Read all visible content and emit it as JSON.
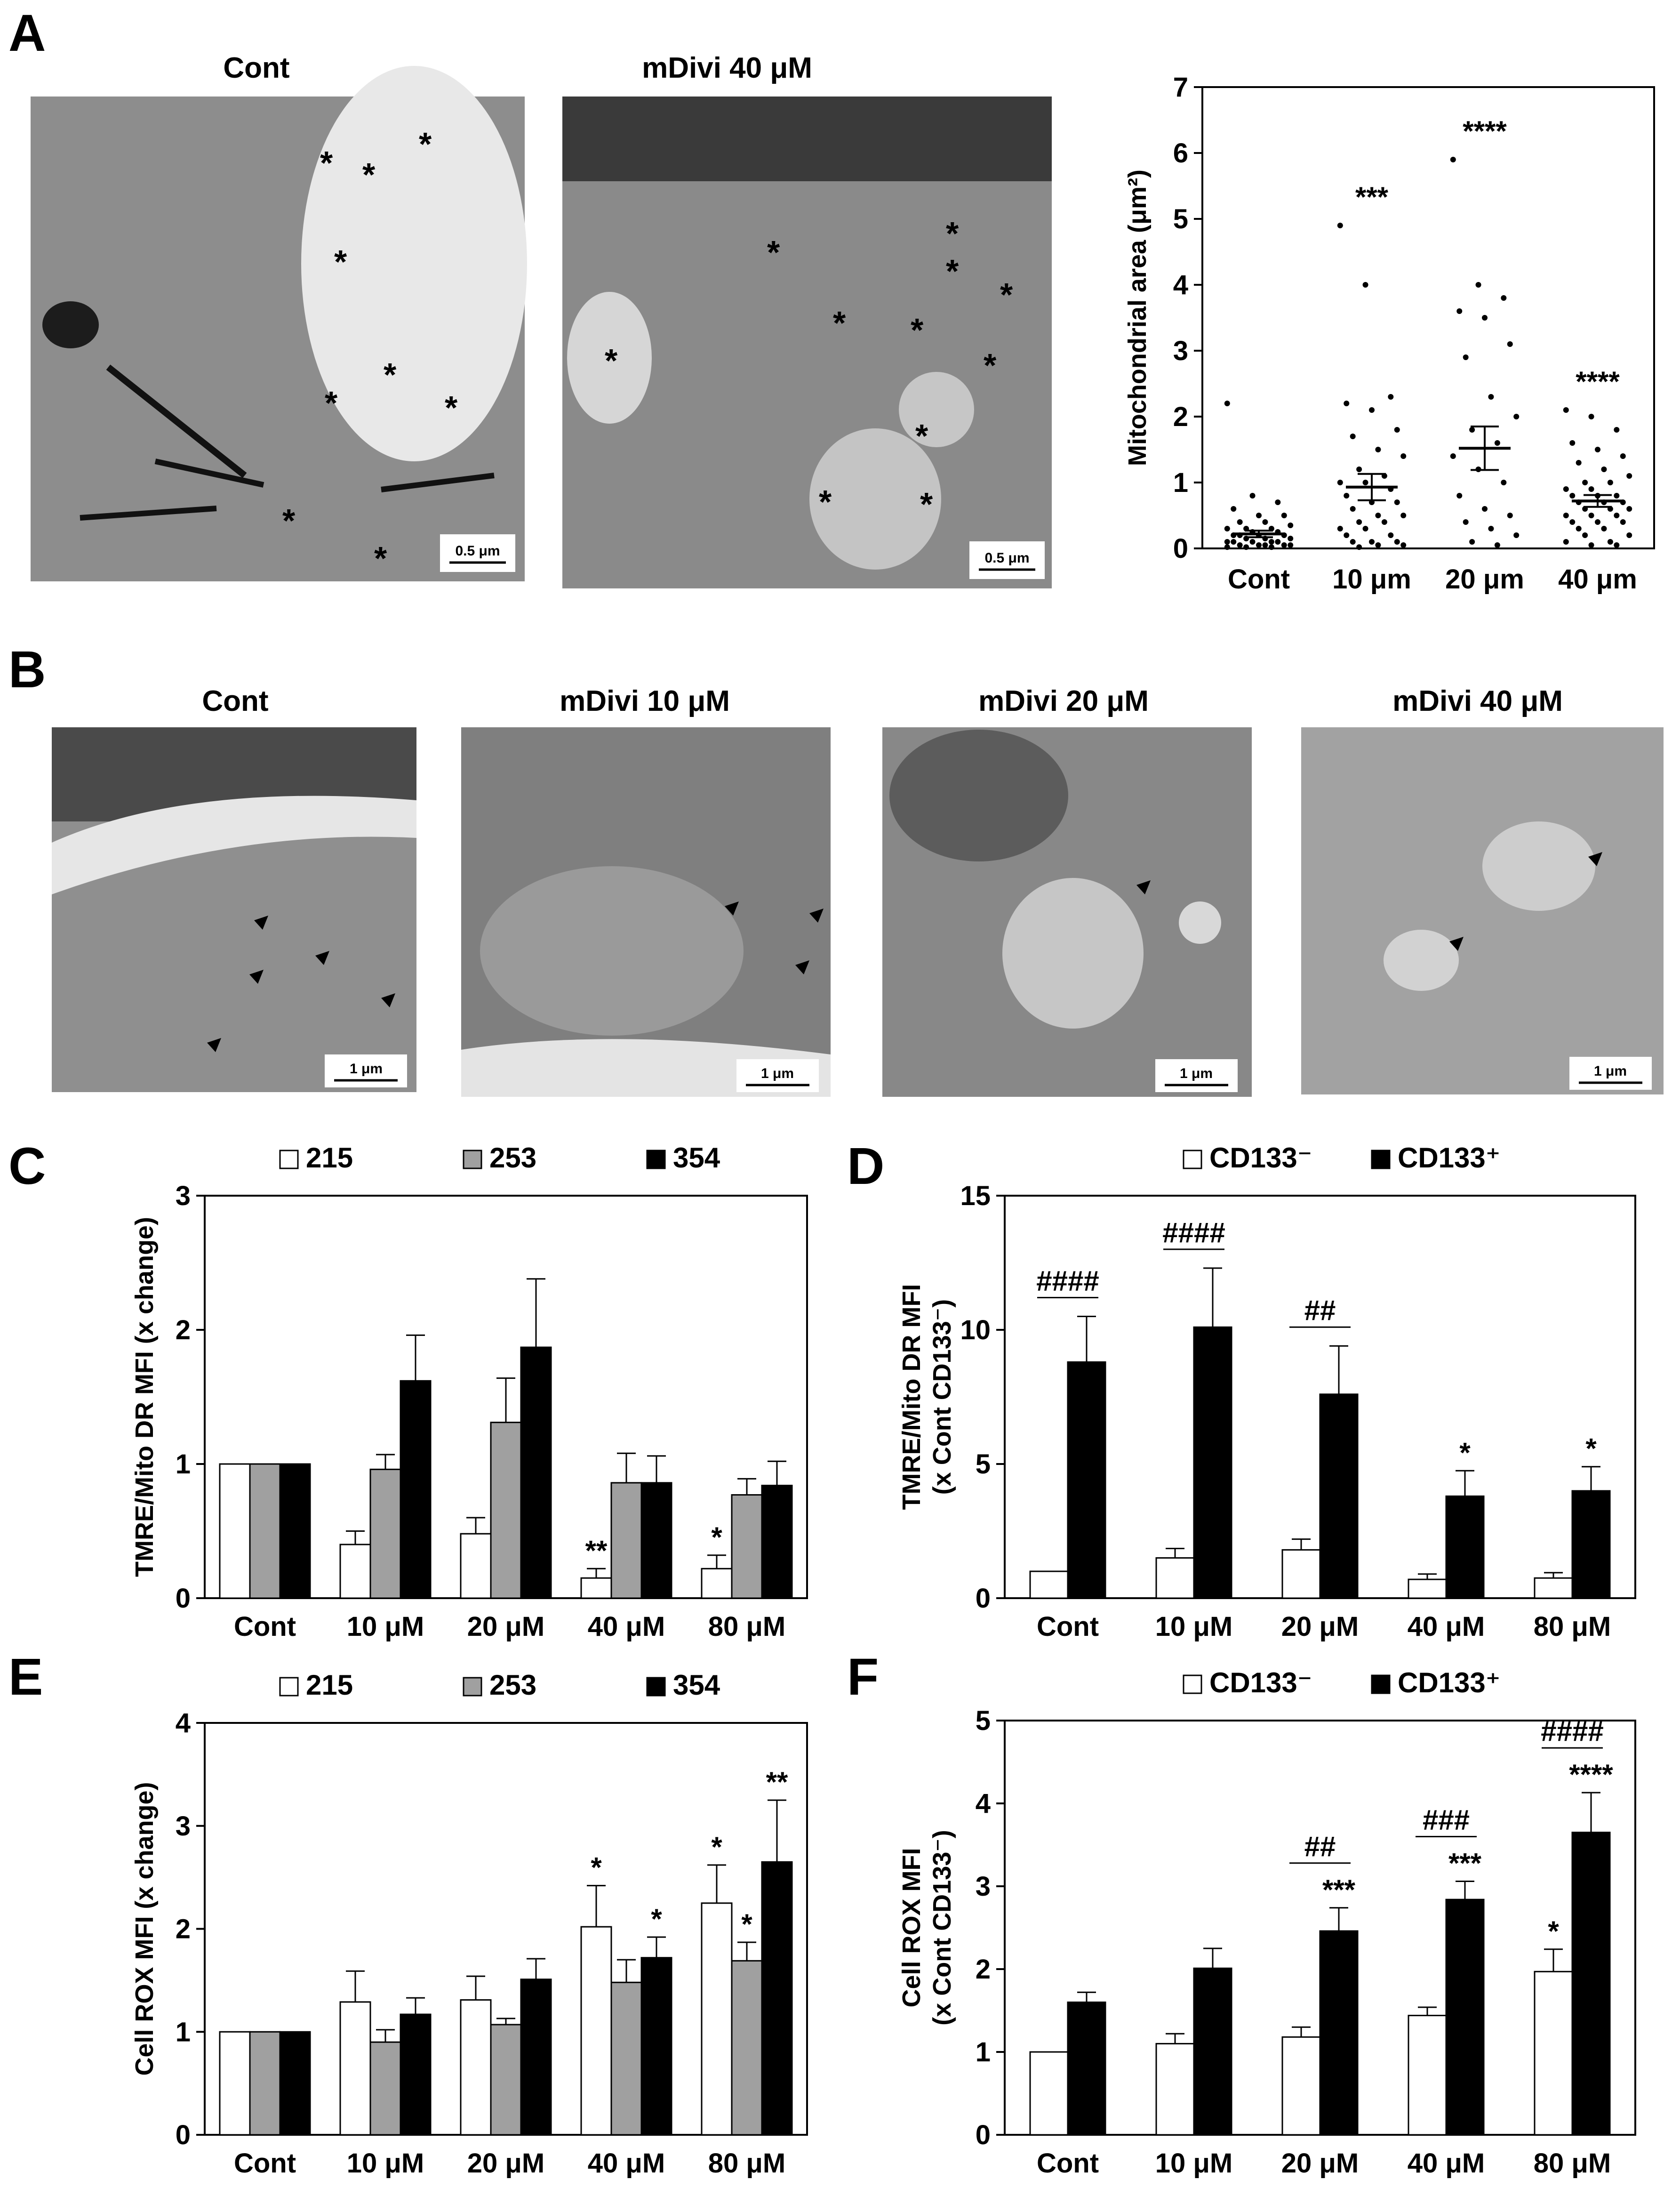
{
  "panels": {
    "A": {
      "label": "A",
      "images": [
        {
          "title": "Cont",
          "scale": "0.5 μm",
          "tone": "#8d8d8d"
        },
        {
          "title": "mDivi 40 μM",
          "scale": "0.5 μm",
          "tone": "#8a8a8a"
        }
      ]
    },
    "B": {
      "label": "B",
      "images": [
        {
          "title": "Cont",
          "scale": "1 μm",
          "tone": "#8f8f8f"
        },
        {
          "title": "mDivi 10 μM",
          "scale": "1 μm",
          "tone": "#7f7f7f"
        },
        {
          "title": "mDivi 20 μM",
          "scale": "1 μm",
          "tone": "#888888"
        },
        {
          "title": "mDivi 40 μM",
          "scale": "1 μm",
          "tone": "#a2a2a2"
        }
      ]
    },
    "C": {
      "label": "C"
    },
    "D": {
      "label": "D"
    },
    "E": {
      "label": "E"
    },
    "F": {
      "label": "F"
    }
  },
  "colors": {
    "white_bar": "#ffffff",
    "gray_bar": "#a0a0a0",
    "black_bar": "#000000"
  },
  "chart_data": [
    {
      "id": "A",
      "type": "scatter",
      "title": "",
      "xlabel": "",
      "ylabel": "Mitochondrial area (μm²)",
      "categories": [
        "Cont",
        "10 μm",
        "20 μm",
        "40 μm"
      ],
      "ylim": [
        0,
        7
      ],
      "yticks": [
        0,
        1,
        2,
        3,
        4,
        5,
        6,
        7
      ],
      "means": [
        0.22,
        0.93,
        1.52,
        0.72
      ],
      "sem": [
        0.05,
        0.2,
        0.33,
        0.09
      ],
      "significance": [
        "",
        "***",
        "****",
        "****"
      ],
      "points": [
        [
          2.2,
          0.8,
          0.7,
          0.6,
          0.5,
          0.5,
          0.4,
          0.4,
          0.35,
          0.3,
          0.3,
          0.3,
          0.25,
          0.25,
          0.2,
          0.2,
          0.2,
          0.2,
          0.15,
          0.15,
          0.15,
          0.1,
          0.1,
          0.1,
          0.1,
          0.1,
          0.05,
          0.05,
          0.05,
          0.05,
          0.05,
          0.02,
          0.02,
          0.02
        ],
        [
          4.9,
          4.0,
          2.3,
          2.2,
          2.1,
          1.8,
          1.7,
          1.5,
          1.4,
          1.2,
          1.1,
          1.0,
          1.0,
          0.9,
          0.8,
          0.7,
          0.7,
          0.6,
          0.5,
          0.5,
          0.4,
          0.4,
          0.3,
          0.3,
          0.2,
          0.2,
          0.1,
          0.1,
          0.1,
          0.05,
          0.05,
          0.02
        ],
        [
          5.9,
          4.0,
          3.8,
          3.6,
          3.5,
          3.1,
          2.9,
          2.3,
          2.0,
          1.8,
          1.6,
          1.4,
          1.2,
          1.0,
          0.8,
          0.6,
          0.5,
          0.4,
          0.3,
          0.2,
          0.1,
          0.05
        ],
        [
          2.1,
          2.0,
          1.8,
          1.6,
          1.5,
          1.4,
          1.3,
          1.2,
          1.1,
          1.0,
          1.0,
          0.9,
          0.9,
          0.8,
          0.8,
          0.8,
          0.7,
          0.7,
          0.7,
          0.6,
          0.6,
          0.6,
          0.5,
          0.5,
          0.5,
          0.4,
          0.4,
          0.4,
          0.3,
          0.3,
          0.2,
          0.2,
          0.1,
          0.1,
          0.05,
          0.05
        ]
      ]
    },
    {
      "id": "C",
      "type": "bar",
      "title": "",
      "xlabel": "",
      "ylabel": "TMRE/Mito DR MFI (x change)",
      "categories": [
        "Cont",
        "10 μM",
        "20 μM",
        "40 μM",
        "80 μM"
      ],
      "ylim": [
        0,
        3
      ],
      "yticks": [
        0,
        1,
        2,
        3
      ],
      "legend": "top",
      "series": [
        {
          "name": "215",
          "color": "#ffffff",
          "values": [
            1.0,
            0.4,
            0.48,
            0.15,
            0.22
          ],
          "err": [
            0,
            0.1,
            0.12,
            0.07,
            0.1
          ],
          "sig": [
            "",
            "",
            "",
            "**",
            "*"
          ]
        },
        {
          "name": "253",
          "color": "#a0a0a0",
          "values": [
            1.0,
            0.96,
            1.31,
            0.86,
            0.77
          ],
          "err": [
            0,
            0.11,
            0.33,
            0.22,
            0.12
          ],
          "sig": [
            "",
            "",
            "",
            "",
            ""
          ]
        },
        {
          "name": "354",
          "color": "#000000",
          "values": [
            1.0,
            1.62,
            1.87,
            0.86,
            0.84
          ],
          "err": [
            0,
            0.34,
            0.51,
            0.2,
            0.18
          ],
          "sig": [
            "",
            "",
            "",
            "",
            ""
          ]
        }
      ]
    },
    {
      "id": "D",
      "type": "bar",
      "title": "",
      "xlabel": "",
      "ylabel": "TMRE/Mito DR MFI",
      "ylabel2": "(x Cont CD133⁻)",
      "categories": [
        "Cont",
        "10 μM",
        "20 μM",
        "40 μM",
        "80 μM"
      ],
      "ylim": [
        0,
        15
      ],
      "yticks": [
        0,
        5,
        10,
        15
      ],
      "legend": "top",
      "series": [
        {
          "name": "CD133⁻",
          "color": "#ffffff",
          "values": [
            1.0,
            1.5,
            1.8,
            0.7,
            0.75
          ],
          "err": [
            0,
            0.35,
            0.4,
            0.2,
            0.2
          ],
          "sig": [
            "",
            "",
            "",
            "",
            ""
          ]
        },
        {
          "name": "CD133⁺",
          "color": "#000000",
          "values": [
            8.8,
            10.1,
            7.6,
            3.8,
            4.0
          ],
          "err": [
            1.7,
            2.2,
            1.8,
            0.95,
            0.9
          ],
          "sig": [
            "",
            "",
            "",
            "*",
            "*"
          ]
        }
      ],
      "brackets": [
        "####",
        "####",
        "##",
        "",
        ""
      ]
    },
    {
      "id": "E",
      "type": "bar",
      "title": "",
      "xlabel": "",
      "ylabel": "Cell ROX MFI (x change)",
      "categories": [
        "Cont",
        "10 μM",
        "20 μM",
        "40 μM",
        "80 μM"
      ],
      "ylim": [
        0,
        4
      ],
      "yticks": [
        0,
        1,
        2,
        3,
        4
      ],
      "legend": "top",
      "series": [
        {
          "name": "215",
          "color": "#ffffff",
          "values": [
            1.0,
            1.29,
            1.31,
            2.02,
            2.25
          ],
          "err": [
            0,
            0.3,
            0.23,
            0.4,
            0.37
          ],
          "sig": [
            "",
            "",
            "",
            "*",
            "*"
          ]
        },
        {
          "name": "253",
          "color": "#a0a0a0",
          "values": [
            1.0,
            0.9,
            1.07,
            1.48,
            1.69
          ],
          "err": [
            0,
            0.12,
            0.06,
            0.22,
            0.18
          ],
          "sig": [
            "",
            "",
            "",
            "",
            "*"
          ]
        },
        {
          "name": "354",
          "color": "#000000",
          "values": [
            1.0,
            1.17,
            1.51,
            1.72,
            2.65
          ],
          "err": [
            0,
            0.16,
            0.2,
            0.2,
            0.6
          ],
          "sig": [
            "",
            "",
            "",
            "*",
            "**"
          ]
        }
      ]
    },
    {
      "id": "F",
      "type": "bar",
      "title": "",
      "xlabel": "",
      "ylabel": "Cell ROX MFI",
      "ylabel2": "(x Cont CD133⁻)",
      "categories": [
        "Cont",
        "10 μM",
        "20 μM",
        "40 μM",
        "80 μM"
      ],
      "ylim": [
        0,
        5
      ],
      "yticks": [
        0,
        1,
        2,
        3,
        4,
        5
      ],
      "legend": "top",
      "series": [
        {
          "name": "CD133⁻",
          "color": "#ffffff",
          "values": [
            1.0,
            1.1,
            1.18,
            1.44,
            1.97
          ],
          "err": [
            0,
            0.12,
            0.12,
            0.1,
            0.27
          ],
          "sig": [
            "",
            "",
            "",
            "",
            "*"
          ]
        },
        {
          "name": "CD133⁺",
          "color": "#000000",
          "values": [
            1.6,
            2.01,
            2.46,
            2.84,
            3.65
          ],
          "err": [
            0.12,
            0.24,
            0.28,
            0.22,
            0.48
          ],
          "sig": [
            "",
            "",
            "***",
            "***",
            "****"
          ]
        }
      ],
      "brackets": [
        "",
        "",
        "##",
        "###",
        "####"
      ]
    }
  ]
}
